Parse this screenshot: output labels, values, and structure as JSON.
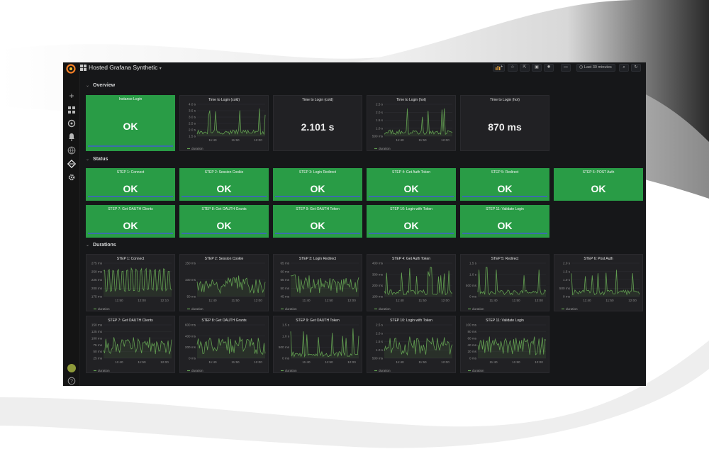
{
  "dashboard": {
    "title": "Hosted Grafana Synthetic",
    "title_caret": "▾",
    "time_range": "Last 30 minutes"
  },
  "icons": {
    "logo": "grafana-logo",
    "sidebar": [
      "plus-icon",
      "dashboards-icon",
      "explore-icon",
      "alert-bell-icon",
      "globe-icon",
      "synthetic-monitoring-icon",
      "gear-icon"
    ],
    "help": "help-icon",
    "toolbar": [
      "add-panel-icon",
      "star-icon",
      "share-icon",
      "save-icon",
      "settings-gear-icon",
      "tv-mode-icon",
      "clock-icon",
      "zoom-out-icon",
      "refresh-icon"
    ]
  },
  "colors": {
    "ok_panel": "#299c46",
    "series_line": "#629e51",
    "background": "#161719",
    "panel_bg": "#212124"
  },
  "rows": {
    "overview": "Overview",
    "status": "Status",
    "durations": "Durations"
  },
  "overview": {
    "instance_login": {
      "title": "Instance Login",
      "value": "OK"
    },
    "stat_cold": {
      "title": "Time to Login (cold)",
      "value": "2.101 s"
    },
    "stat_hot": {
      "title": "Time to Login (hot)",
      "value": "870 ms"
    },
    "graph_cold": {
      "title": "Time to Login (cold)",
      "yticks": [
        "4.0 s",
        "3.5 s",
        "3.0 s",
        "2.5 s",
        "2.0 s",
        "1.5 s"
      ],
      "xticks": [
        "11:40",
        "11:50",
        "12:00"
      ],
      "legend": "duration"
    },
    "graph_hot": {
      "title": "Time to Login (hot)",
      "yticks": [
        "2.5 s",
        "2.0 s",
        "1.5 s",
        "1.0 s",
        "500 ms"
      ],
      "xticks": [
        "11:40",
        "11:50",
        "12:00"
      ],
      "legend": "duration"
    }
  },
  "status": [
    {
      "title": "STEP 1: Connect",
      "value": "OK"
    },
    {
      "title": "STEP 2: Session Cookie",
      "value": "OK"
    },
    {
      "title": "STEP 3: Login Redirect",
      "value": "OK"
    },
    {
      "title": "STEP 4: Get Auth Token",
      "value": "OK"
    },
    {
      "title": "STEP 5: Redirect",
      "value": "OK"
    },
    {
      "title": "STEP 6: POST Auth",
      "value": "OK"
    },
    {
      "title": "STEP 7: Get OAUTH Clients",
      "value": "OK"
    },
    {
      "title": "STEP 8: Get OAUTH Grants",
      "value": "OK"
    },
    {
      "title": "STEP 9: Get OAUTH Token",
      "value": "OK"
    },
    {
      "title": "STEP 10: Login with Token",
      "value": "OK"
    },
    {
      "title": "STEP 11: Validate Login",
      "value": "OK"
    }
  ],
  "durations": [
    {
      "title": "STEP 1: Connect",
      "yticks": [
        "275 ms",
        "250 ms",
        "225 ms",
        "200 ms",
        "175 ms"
      ],
      "xticks": [
        "11:50",
        "12:00",
        "12:10"
      ],
      "legend": "duration"
    },
    {
      "title": "STEP 2: Session Cookie",
      "yticks": [
        "150 ms",
        "100 ms",
        "50 ms"
      ],
      "xticks": [
        "11:40",
        "11:50",
        "12:00"
      ],
      "legend": "duration"
    },
    {
      "title": "STEP 3: Login Redirect",
      "yticks": [
        "65 ms",
        "60 ms",
        "55 ms",
        "50 ms",
        "45 ms"
      ],
      "xticks": [
        "11:40",
        "11:50",
        "12:00"
      ],
      "legend": "duration"
    },
    {
      "title": "STEP 4: Get Auth Token",
      "yticks": [
        "400 ms",
        "300 ms",
        "200 ms",
        "100 ms"
      ],
      "xticks": [
        "11:40",
        "11:50",
        "12:00"
      ],
      "legend": "duration"
    },
    {
      "title": "STEP 5: Redirect",
      "yticks": [
        "1.5 s",
        "1.0 s",
        "500 ms",
        "0 ms"
      ],
      "xticks": [
        "11:40",
        "11:50",
        "12:00"
      ],
      "legend": "duration"
    },
    {
      "title": "STEP 6: Post Auth",
      "yticks": [
        "2.0 s",
        "1.5 s",
        "1.0 s",
        "500 ms",
        "0 ms"
      ],
      "xticks": [
        "11:40",
        "11:50",
        "12:00"
      ],
      "legend": "duration"
    },
    {
      "title": "STEP 7: Get OAUTH Clients",
      "yticks": [
        "150 ms",
        "125 ms",
        "100 ms",
        "75 ms",
        "50 ms",
        "25 ms"
      ],
      "xticks": [
        "11:40",
        "11:50",
        "12:00"
      ],
      "legend": "duration"
    },
    {
      "title": "STEP 8: Get OAUTH Grants",
      "yticks": [
        "600 ms",
        "400 ms",
        "200 ms",
        "0 ms"
      ],
      "xticks": [
        "11:40",
        "11:50",
        "12:00"
      ],
      "legend": "duration"
    },
    {
      "title": "STEP 9: Get OAUTH Token",
      "yticks": [
        "1.5 s",
        "1.0 s",
        "500 ms",
        "0 ms"
      ],
      "xticks": [
        "11:40",
        "11:50",
        "12:00"
      ],
      "legend": "duration"
    },
    {
      "title": "STEP 10: Login with Token",
      "yticks": [
        "2.5 s",
        "2.0 s",
        "1.5 s",
        "1.0 s",
        "500 ms"
      ],
      "xticks": [
        "11:40",
        "11:50",
        "12:00"
      ],
      "legend": "duration"
    },
    {
      "title": "STEP 11: Validate Login",
      "yticks": [
        "100 ms",
        "80 ms",
        "60 ms",
        "40 ms",
        "20 ms",
        "0 ms"
      ],
      "xticks": [
        "11:40",
        "11:50",
        "12:00"
      ],
      "legend": "duration"
    }
  ]
}
